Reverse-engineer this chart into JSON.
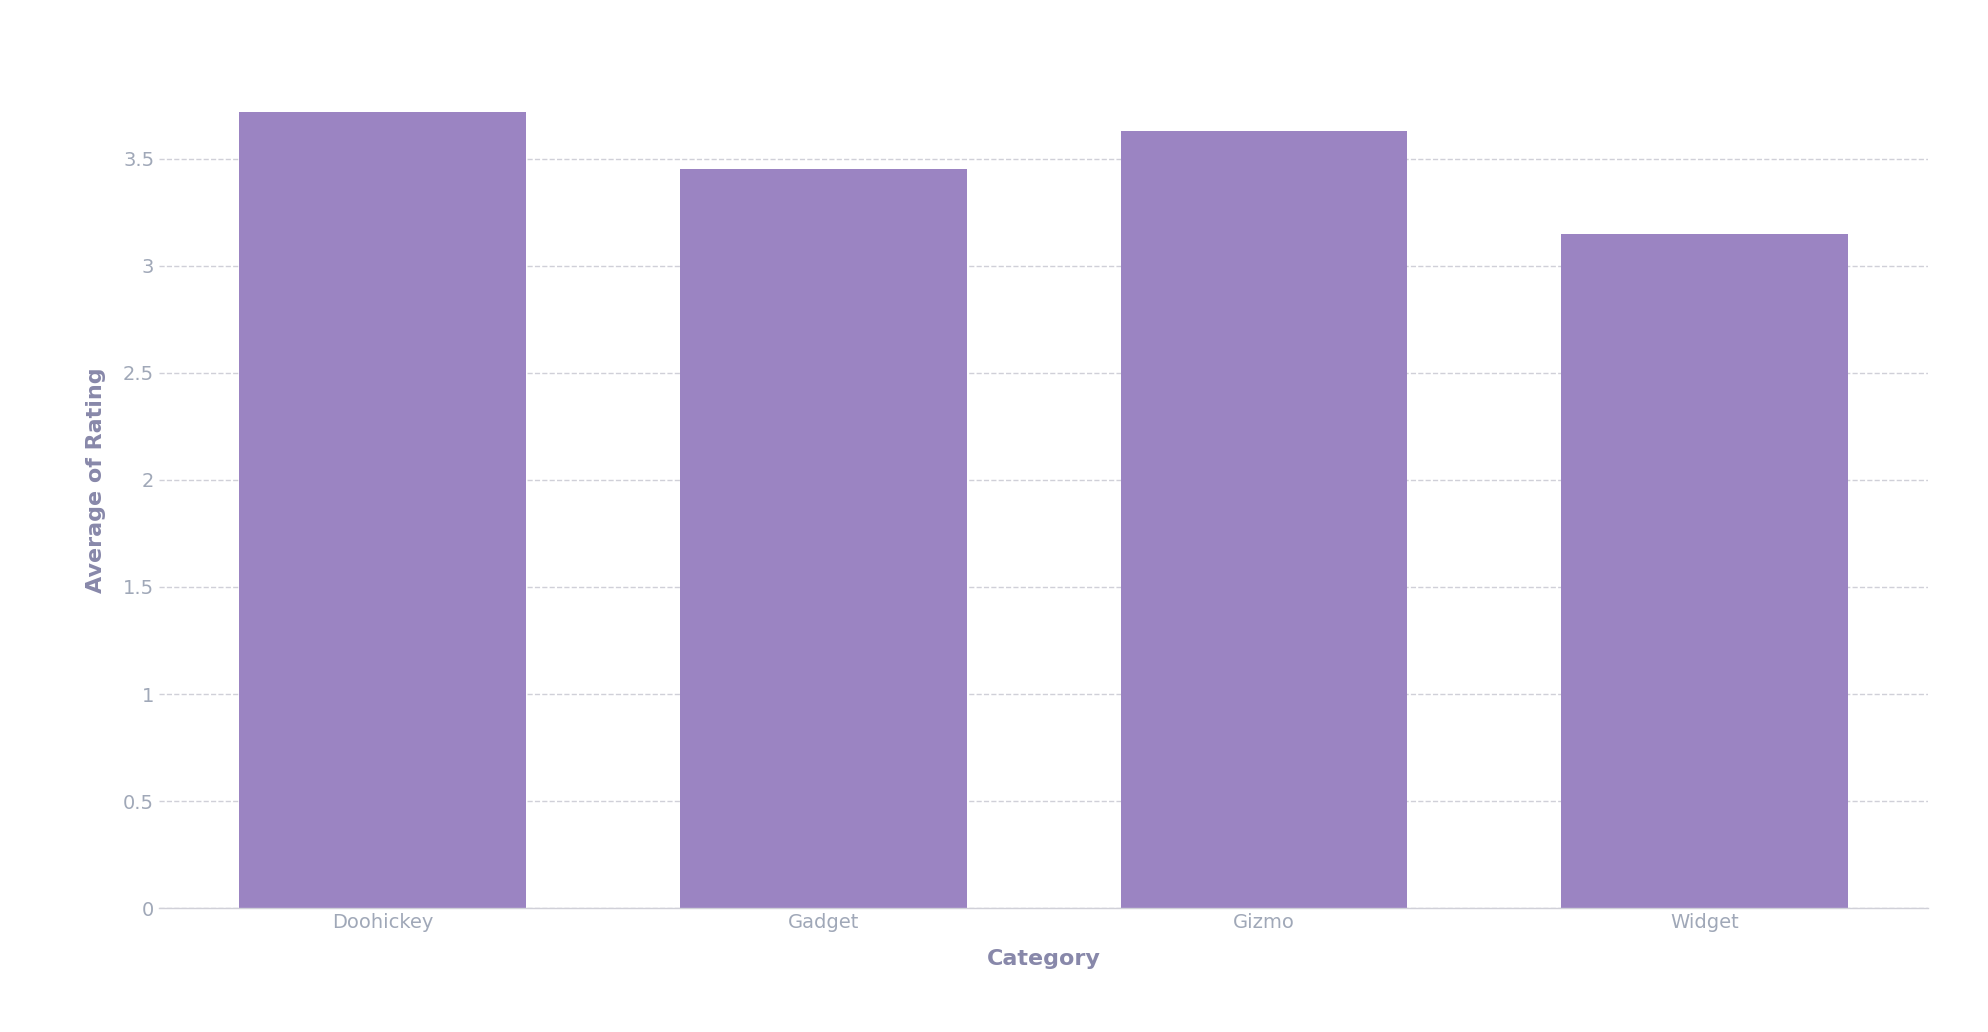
{
  "categories": [
    "Doohickey",
    "Gadget",
    "Gizmo",
    "Widget"
  ],
  "values": [
    3.72,
    3.45,
    3.63,
    3.15
  ],
  "bar_color": "#9b84c2",
  "xlabel": "Category",
  "ylabel": "Average of Rating",
  "ylim": [
    0,
    4.0
  ],
  "yticks": [
    0,
    0.5,
    1.0,
    1.5,
    2.0,
    2.5,
    3.0,
    3.5
  ],
  "background_color": "#ffffff",
  "grid_color": "#d0d0d8",
  "tick_color": "#a0a8b8",
  "label_color": "#8888aa",
  "bar_width": 0.65,
  "label_fontsize": 16,
  "tick_fontsize": 14
}
